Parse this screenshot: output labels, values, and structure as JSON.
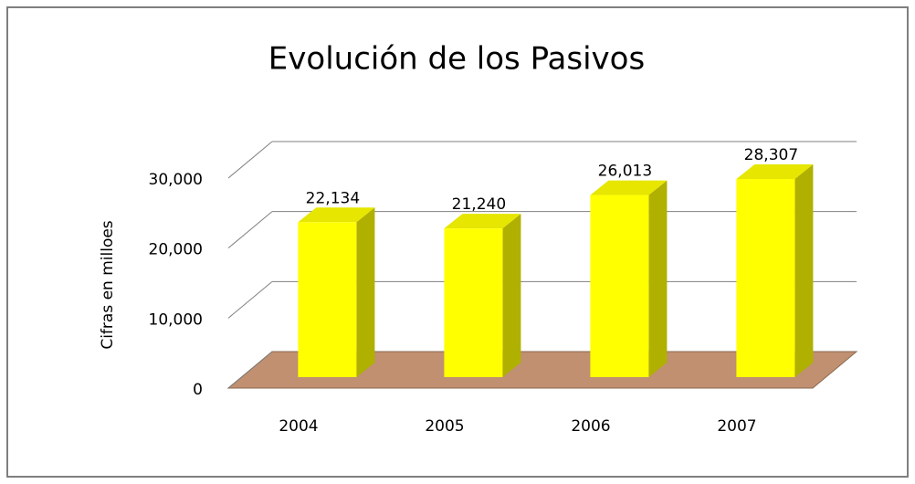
{
  "chart_data": {
    "type": "bar3d",
    "title": "Evolución de los Pasivos",
    "y_axis_label": "Cifras en milloes",
    "categories": [
      "2004",
      "2005",
      "2006",
      "2007"
    ],
    "values": [
      22134,
      21240,
      26013,
      28307
    ],
    "value_labels": [
      "22,134",
      "21,240",
      "26,013",
      "28,307"
    ],
    "color": "#ffff00",
    "ylim": [
      0,
      30000
    ],
    "yticks": [
      0,
      {
        "value": 10000,
        "label": "10,000"
      },
      {
        "value": 20000,
        "label": "20,000"
      },
      {
        "value": 30000,
        "label": "30,000"
      }
    ],
    "grid": true
  }
}
